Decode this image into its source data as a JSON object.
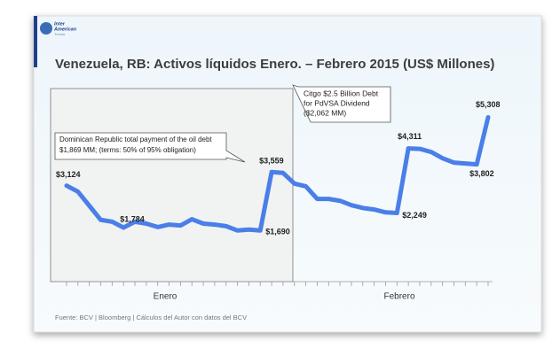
{
  "logo": {
    "line1": "Inter",
    "line2": "American",
    "line3": "Trends"
  },
  "source": "Fuente: BCV | Bloomberg | Cálculos del Autor con datos del BCV",
  "chart_data": {
    "type": "line",
    "title": "Venezuela, RB: Activos líquidos Enero. –  Febrero 2015 (US$ Millones)",
    "group_labels": [
      "Enero",
      "Febrero"
    ],
    "categories": [
      null,
      null,
      null,
      null,
      null,
      null,
      null,
      null,
      null,
      null,
      null,
      null,
      null,
      null,
      null,
      null,
      null,
      null,
      null,
      null,
      null,
      null,
      null,
      null,
      null,
      null,
      null,
      null,
      null,
      null,
      null,
      null,
      null,
      null,
      null,
      null,
      null,
      null
    ],
    "values": [
      3124,
      2930,
      2480,
      2030,
      1970,
      1784,
      1970,
      1910,
      1800,
      1880,
      1850,
      2050,
      1910,
      1880,
      1830,
      1690,
      1720,
      1690,
      3559,
      3530,
      3190,
      3100,
      2700,
      2700,
      2640,
      2500,
      2410,
      2360,
      2270,
      2249,
      4311,
      4300,
      4200,
      4000,
      3860,
      3830,
      3802,
      5308
    ],
    "value_labels": [
      "$3,124",
      null,
      null,
      null,
      null,
      "$1,784",
      null,
      null,
      null,
      null,
      null,
      null,
      null,
      null,
      null,
      null,
      null,
      "$1,690",
      "$3,559",
      null,
      null,
      null,
      null,
      null,
      null,
      null,
      null,
      null,
      null,
      "$2,249",
      "$4,311",
      null,
      null,
      null,
      null,
      null,
      "$3,802",
      "$5,308"
    ],
    "color": "#4a7fe8",
    "ylim": [
      0,
      6000
    ],
    "annotations": [
      {
        "lines": [
          "Dominican Republic total payment of the oil debt",
          "$1,869 MM; (terms: 50% of 95% obligation)"
        ]
      },
      {
        "lines": [
          "Citgo $2.5 Billion Debt",
          "for PdVSA Dividend",
          "($2,062 MM)"
        ]
      }
    ]
  }
}
